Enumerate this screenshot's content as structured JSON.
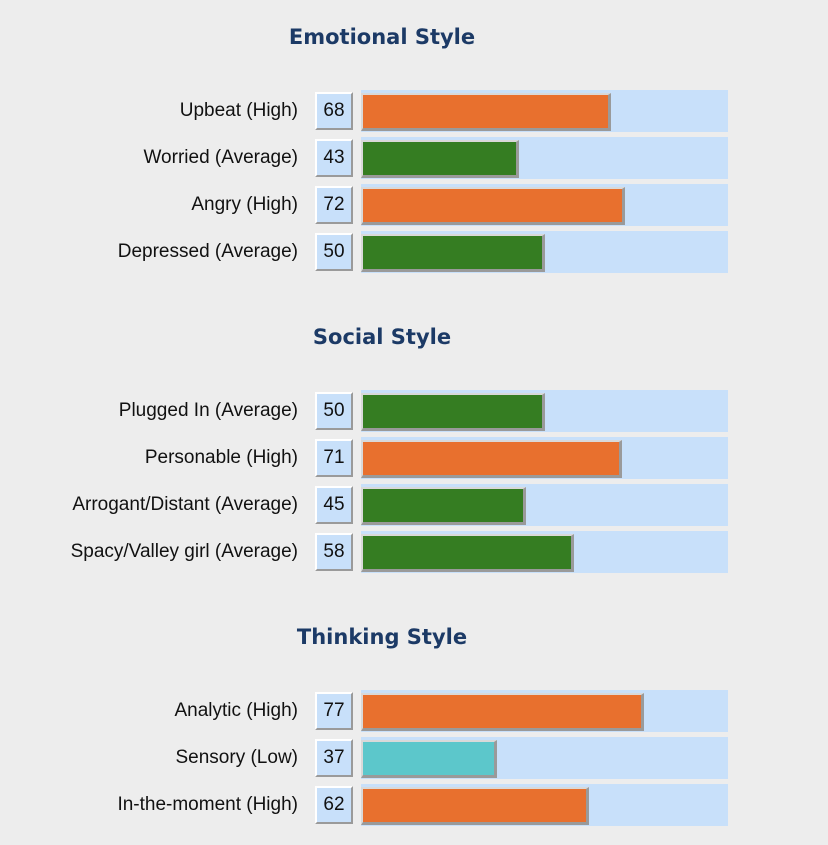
{
  "chart_data": {
    "type": "bar",
    "orientation": "horizontal",
    "xlim": [
      0,
      100
    ],
    "colors": {
      "high": "#e8702e",
      "average": "#357d22",
      "low": "#5cc7cb",
      "track": "#c8e0fa",
      "title": "#1c3a66"
    },
    "sections": [
      {
        "title": "Emotional Style",
        "rows": [
          {
            "label": "Upbeat (High)",
            "value": 68,
            "level": "high"
          },
          {
            "label": "Worried (Average)",
            "value": 43,
            "level": "average"
          },
          {
            "label": "Angry (High)",
            "value": 72,
            "level": "high"
          },
          {
            "label": "Depressed (Average)",
            "value": 50,
            "level": "average"
          }
        ]
      },
      {
        "title": "Social Style",
        "rows": [
          {
            "label": "Plugged In (Average)",
            "value": 50,
            "level": "average"
          },
          {
            "label": "Personable (High)",
            "value": 71,
            "level": "high"
          },
          {
            "label": "Arrogant/Distant (Average)",
            "value": 45,
            "level": "average"
          },
          {
            "label": "Spacy/Valley girl (Average)",
            "value": 58,
            "level": "average"
          }
        ]
      },
      {
        "title": "Thinking Style",
        "rows": [
          {
            "label": "Analytic (High)",
            "value": 77,
            "level": "high"
          },
          {
            "label": "Sensory (Low)",
            "value": 37,
            "level": "low"
          },
          {
            "label": "In-the-moment (High)",
            "value": 62,
            "level": "high"
          }
        ]
      }
    ]
  }
}
